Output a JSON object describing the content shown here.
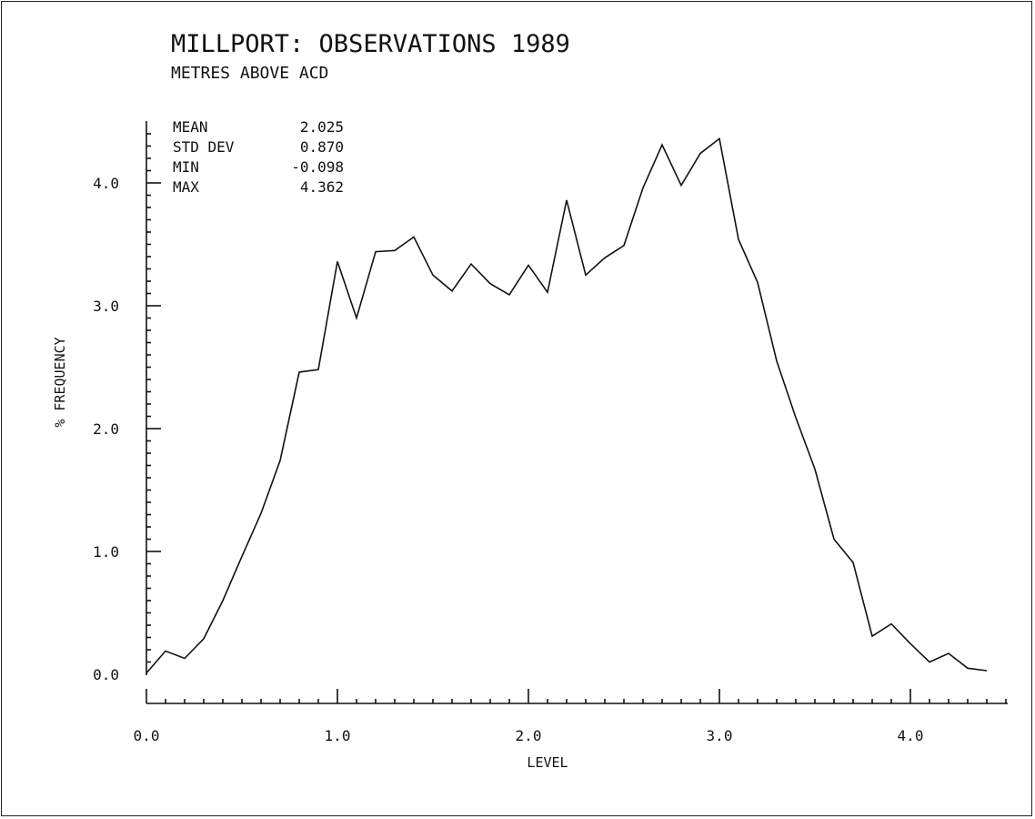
{
  "chart_data": {
    "type": "line",
    "title": "MILLPORT: OBSERVATIONS 1989",
    "subtitle": "METRES ABOVE ACD",
    "xlabel": "LEVEL",
    "ylabel": "% FREQUENCY",
    "xlim": [
      0.0,
      4.5
    ],
    "ylim": [
      0.0,
      4.5
    ],
    "x_ticks": [
      "0.0",
      "1.0",
      "2.0",
      "3.0",
      "4.0"
    ],
    "y_ticks": [
      "0.0",
      "1.0",
      "2.0",
      "3.0",
      "4.0"
    ],
    "stats": [
      {
        "label": "MEAN",
        "value": "2.025"
      },
      {
        "label": "STD DEV",
        "value": "0.870"
      },
      {
        "label": "MIN",
        "value": "-0.098"
      },
      {
        "label": "MAX",
        "value": "4.362"
      }
    ],
    "x": [
      0.0,
      0.1,
      0.2,
      0.3,
      0.4,
      0.5,
      0.6,
      0.7,
      0.8,
      0.9,
      1.0,
      1.1,
      1.2,
      1.3,
      1.4,
      1.5,
      1.6,
      1.7,
      1.8,
      1.9,
      2.0,
      2.1,
      2.2,
      2.3,
      2.4,
      2.5,
      2.6,
      2.7,
      2.8,
      2.9,
      3.0,
      3.1,
      3.2,
      3.3,
      3.4,
      3.5,
      3.6,
      3.7,
      3.8,
      3.9,
      4.0,
      4.1,
      4.2,
      4.3,
      4.4
    ],
    "y": [
      0.01,
      0.19,
      0.13,
      0.29,
      0.6,
      0.96,
      1.31,
      1.74,
      2.46,
      2.48,
      3.36,
      2.9,
      3.44,
      3.45,
      3.56,
      3.25,
      3.12,
      3.34,
      3.18,
      3.09,
      3.33,
      3.11,
      3.86,
      3.25,
      3.39,
      3.49,
      3.96,
      4.31,
      3.98,
      4.24,
      4.36,
      3.54,
      3.19,
      2.55,
      2.09,
      1.67,
      1.1,
      0.91,
      0.31,
      0.41,
      0.25,
      0.1,
      0.17,
      0.05,
      0.03
    ],
    "grid": false,
    "legend": "none"
  }
}
